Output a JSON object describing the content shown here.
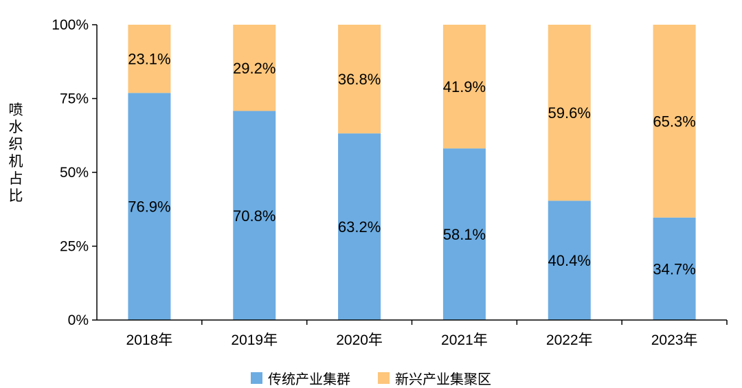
{
  "chart_data": {
    "type": "bar",
    "stacked": true,
    "ylabel": "喷水织机占比",
    "ylim": [
      0,
      100
    ],
    "yticks": [
      "0%",
      "25%",
      "50%",
      "75%",
      "100%"
    ],
    "categories": [
      "2018年",
      "2019年",
      "2020年",
      "2021年",
      "2022年",
      "2023年"
    ],
    "series": [
      {
        "name": "传统产业集群",
        "color": "#6CACE2",
        "values": [
          76.9,
          70.8,
          63.2,
          58.1,
          40.4,
          34.7
        ],
        "labels": [
          "76.9%",
          "70.8%",
          "63.2%",
          "58.1%",
          "40.4%",
          "34.7%"
        ]
      },
      {
        "name": "新兴产业集聚区",
        "color": "#FDC67C",
        "values": [
          23.1,
          29.2,
          36.8,
          41.9,
          59.6,
          65.3
        ],
        "labels": [
          "23.1%",
          "29.2%",
          "36.8%",
          "41.9%",
          "59.6%",
          "65.3%"
        ]
      }
    ],
    "legend": "bottom"
  }
}
